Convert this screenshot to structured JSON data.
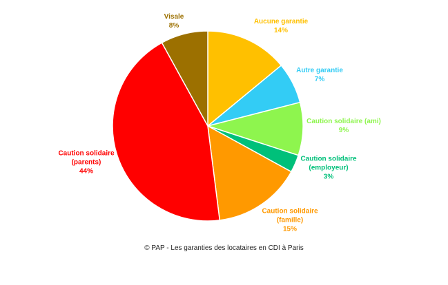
{
  "chart_data": {
    "type": "pie",
    "title": "© PAP - Les garanties des locataires en CDI à Paris",
    "categories": [
      "Aucune garantie",
      "Autre garantie",
      "Caution solidaire (ami)",
      "Caution solidaire (employeur)",
      "Caution solidaire (famille)",
      "Caution solidaire (parents)",
      "Visale"
    ],
    "values": [
      14,
      7,
      9,
      3,
      15,
      44,
      8
    ],
    "value_labels": [
      "14%",
      "7%",
      "9%",
      "3%",
      "15%",
      "44%",
      "8%"
    ],
    "colors": [
      "#ffc000",
      "#33ccf5",
      "#8ef54e",
      "#00c07a",
      "#ff9900",
      "#ff0000",
      "#9c7000"
    ]
  }
}
